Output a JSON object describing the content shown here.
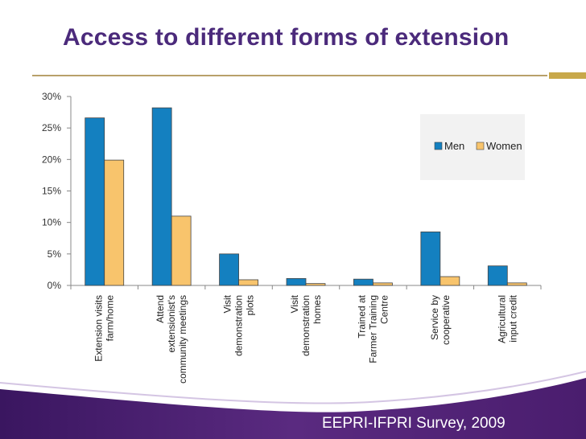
{
  "slide": {
    "title": "Access to different forms of extension",
    "footer": "EEPRI-IFPRI Survey, 2009"
  },
  "colors": {
    "men": "#1480c0",
    "women": "#f8c46c",
    "title": "#4b2a7b",
    "swoosh": "#4a1d6e"
  },
  "chart_data": {
    "type": "bar",
    "title": "",
    "xlabel": "",
    "ylabel": "",
    "ylim": [
      0,
      30
    ],
    "yticks": [
      "0%",
      "5%",
      "10%",
      "15%",
      "20%",
      "25%",
      "30%"
    ],
    "ytick_values": [
      0,
      5,
      10,
      15,
      20,
      25,
      30
    ],
    "grid": false,
    "legend": "top-right",
    "categories": [
      [
        "Extension visits",
        "farm/home"
      ],
      [
        "Attend",
        "extensionist's",
        "community meetings"
      ],
      [
        "Visit",
        "demonstration",
        "plots"
      ],
      [
        "Visit",
        "demonstration",
        "homes"
      ],
      [
        "Trained at",
        "Farmer Training",
        "Centre"
      ],
      [
        "Service by",
        "cooperative"
      ],
      [
        "Agricultural",
        "input credit"
      ]
    ],
    "series": [
      {
        "name": "Men",
        "values": [
          26.6,
          28.2,
          5.0,
          1.1,
          1.0,
          8.5,
          3.1
        ]
      },
      {
        "name": "Women",
        "values": [
          19.9,
          11.0,
          0.9,
          0.3,
          0.4,
          1.4,
          0.4
        ]
      }
    ]
  }
}
